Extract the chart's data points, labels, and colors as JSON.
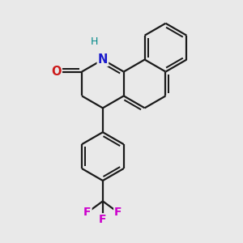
{
  "background_color": "#e9e9e9",
  "bond_color": "#1a1a1a",
  "bond_width": 1.6,
  "atom_labels": {
    "N": {
      "color": "#1a1acc",
      "fontsize": 10.5,
      "fontweight": "bold"
    },
    "H": {
      "color": "#008888",
      "fontsize": 9.0,
      "fontweight": "normal"
    },
    "O": {
      "color": "#cc1a1a",
      "fontsize": 10.5,
      "fontweight": "bold"
    },
    "F": {
      "color": "#cc00cc",
      "fontsize": 10.0,
      "fontweight": "bold"
    }
  },
  "figsize": [
    3.0,
    3.0
  ],
  "dpi": 100
}
